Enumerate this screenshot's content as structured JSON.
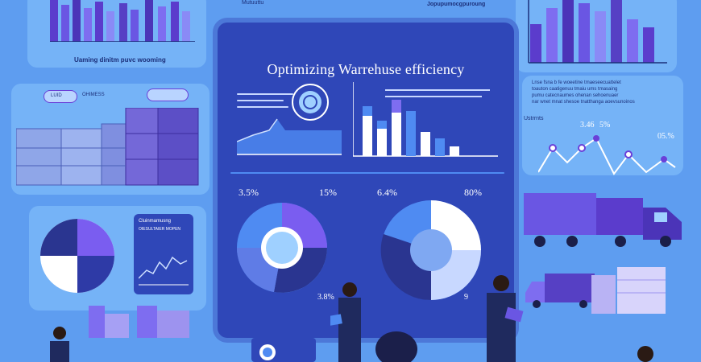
{
  "title": "Optimizing Warrehuse efficiency",
  "top_left_caption": "Uaming dinitm puvc wooming",
  "top_middle_label": "Mutuuttu",
  "top_right_label": "Jopupumocgpuroung",
  "center": {
    "pie_left_pct_a": "3.5%",
    "pie_left_pct_b": "15%",
    "pie_left_pct_c": "3.8%",
    "pie_right_pct_a": "6.4%",
    "pie_right_pct_b": "80%",
    "pie_right_pct_c": "9"
  },
  "right_panel": {
    "paragraph_lines": [
      "Lnse fsna b fe woeetine tmaeseecuattelet",
      "toauton caatigenuu tmaiu ums tmasaing",
      "pumu catecnaumes ohenan sehoenuaer",
      "nar wnet mnat shesoe tnatthanga aoevsunoinos"
    ],
    "tag_label": "Ustrrnts",
    "stat_a": "3.46",
    "stat_b": "5%",
    "stat_c": "05.%"
  },
  "left_mini_panel": {
    "header": "Cluinmamusng",
    "subheader": "OIESULTAIER MOPEN",
    "badge_a": "LUID",
    "badge_b": "OHIMESS"
  },
  "colors": {
    "background": "#5e9df0",
    "panel": "#75b3f7",
    "center_panel": "#2f47b8",
    "accent_purple": "#6a3fd8",
    "accent_blue": "#4f8bf2"
  },
  "icons": {
    "target": "target-icon",
    "truck": "truck-icon",
    "tablet": "tablet-icon"
  }
}
